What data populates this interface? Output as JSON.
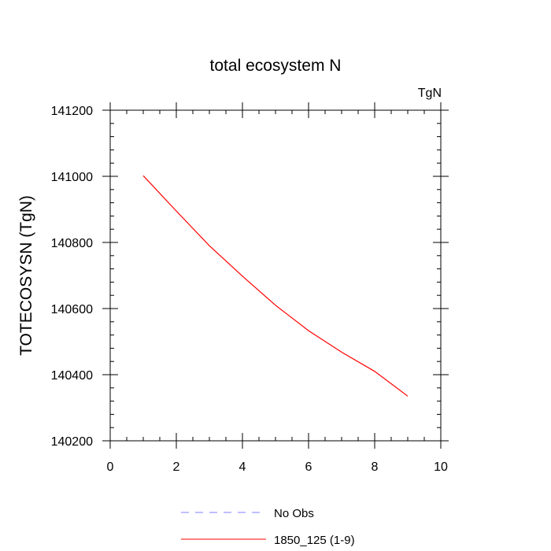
{
  "chart_data": {
    "type": "line",
    "title": "total ecosystem N",
    "units_label": "TgN",
    "xlabel": "",
    "ylabel": "TOTECOSYSN  (TgN)",
    "xlim": [
      0,
      10
    ],
    "ylim": [
      140200,
      141200
    ],
    "x_ticks": [
      0,
      2,
      4,
      6,
      8,
      10
    ],
    "y_ticks": [
      140200,
      140400,
      140600,
      140800,
      141000,
      141200
    ],
    "x_ticks_labels": [
      "0",
      "2",
      "4",
      "6",
      "8",
      "10"
    ],
    "y_ticks_labels": [
      "140200",
      "140400",
      "140600",
      "140800",
      "141000",
      "141200"
    ],
    "grid": false,
    "legend_position": "bottom",
    "series": [
      {
        "name": "No Obs",
        "color": "#7f7fff",
        "dash": "dashed",
        "x": [],
        "y": []
      },
      {
        "name": "1850_125 (1-9)",
        "color": "#ff0000",
        "dash": "solid",
        "x": [
          1,
          2,
          3,
          4,
          5,
          6,
          7,
          8,
          9
        ],
        "y": [
          141002,
          140895,
          140790,
          140698,
          140610,
          140533,
          140468,
          140410,
          140335
        ]
      }
    ]
  }
}
